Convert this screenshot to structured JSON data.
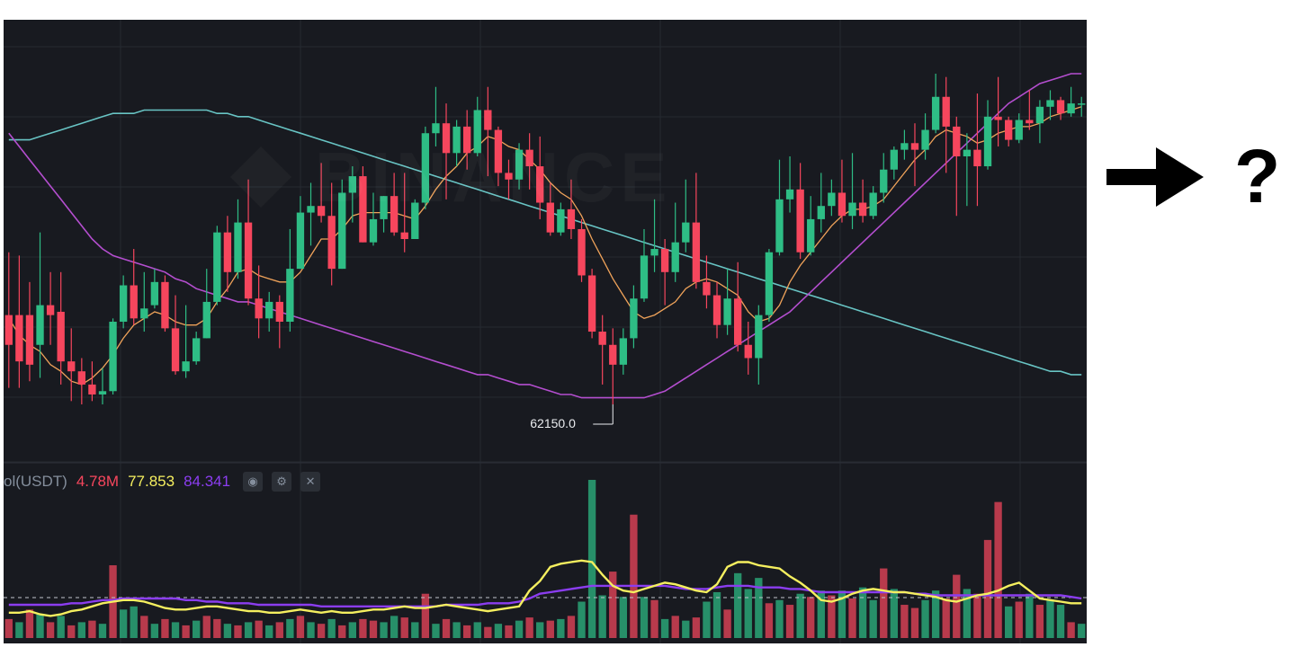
{
  "chart_data": {
    "type": "candlestick",
    "source": "Binance",
    "watermark": "BINANCE",
    "colors": {
      "up": "#2ebd85",
      "down": "#f6465d",
      "ma_short": "#f0a35a",
      "ma_mid": "#b44ecf",
      "ma_long": "#68c4c4",
      "vol_ma_fast": "#f5ef5f",
      "vol_ma_slow": "#8b3df0",
      "background": "#181a20",
      "grid": "#262a31"
    },
    "grid": true,
    "low_marker": {
      "label": "62150.0",
      "candle_index": 58
    },
    "candles": [
      [
        0.27,
        0.18,
        0.05,
        0.46
      ],
      [
        0.27,
        0.13,
        0.05,
        0.45
      ],
      [
        0.27,
        0.12,
        0.07,
        0.37
      ],
      [
        0.18,
        0.3,
        0.08,
        0.52
      ],
      [
        0.3,
        0.27,
        0.18,
        0.4
      ],
      [
        0.28,
        0.13,
        0.06,
        0.4
      ],
      [
        0.13,
        0.1,
        0.01,
        0.23
      ],
      [
        0.1,
        0.06,
        0.0,
        0.14
      ],
      [
        0.06,
        0.03,
        0.01,
        0.13
      ],
      [
        0.03,
        0.04,
        0.0,
        0.11
      ],
      [
        0.04,
        0.25,
        0.03,
        0.26
      ],
      [
        0.25,
        0.36,
        0.23,
        0.39
      ],
      [
        0.36,
        0.26,
        0.24,
        0.47
      ],
      [
        0.26,
        0.29,
        0.22,
        0.4
      ],
      [
        0.3,
        0.37,
        0.29,
        0.41
      ],
      [
        0.37,
        0.23,
        0.22,
        0.39
      ],
      [
        0.23,
        0.1,
        0.09,
        0.33
      ],
      [
        0.1,
        0.13,
        0.08,
        0.3
      ],
      [
        0.13,
        0.2,
        0.12,
        0.22
      ],
      [
        0.2,
        0.31,
        0.2,
        0.41
      ],
      [
        0.31,
        0.52,
        0.3,
        0.54
      ],
      [
        0.52,
        0.4,
        0.34,
        0.57
      ],
      [
        0.4,
        0.55,
        0.38,
        0.62
      ],
      [
        0.55,
        0.32,
        0.3,
        0.68
      ],
      [
        0.32,
        0.26,
        0.2,
        0.42
      ],
      [
        0.26,
        0.31,
        0.22,
        0.34
      ],
      [
        0.31,
        0.25,
        0.17,
        0.33
      ],
      [
        0.25,
        0.41,
        0.22,
        0.53
      ],
      [
        0.41,
        0.58,
        0.41,
        0.63
      ],
      [
        0.58,
        0.6,
        0.48,
        0.67
      ],
      [
        0.6,
        0.57,
        0.55,
        0.73
      ],
      [
        0.57,
        0.41,
        0.36,
        0.67
      ],
      [
        0.41,
        0.64,
        0.41,
        0.68
      ],
      [
        0.64,
        0.69,
        0.55,
        0.72
      ],
      [
        0.69,
        0.49,
        0.49,
        0.72
      ],
      [
        0.49,
        0.56,
        0.48,
        0.64
      ],
      [
        0.56,
        0.63,
        0.52,
        0.63
      ],
      [
        0.63,
        0.52,
        0.51,
        0.7
      ],
      [
        0.52,
        0.5,
        0.46,
        0.7
      ],
      [
        0.5,
        0.61,
        0.5,
        0.62
      ],
      [
        0.61,
        0.82,
        0.59,
        0.84
      ],
      [
        0.82,
        0.85,
        0.78,
        0.96
      ],
      [
        0.85,
        0.76,
        0.62,
        0.91
      ],
      [
        0.76,
        0.84,
        0.72,
        0.86
      ],
      [
        0.84,
        0.76,
        0.71,
        0.89
      ],
      [
        0.76,
        0.89,
        0.75,
        0.93
      ],
      [
        0.89,
        0.83,
        0.69,
        0.96
      ],
      [
        0.83,
        0.7,
        0.66,
        0.84
      ],
      [
        0.7,
        0.68,
        0.62,
        0.74
      ],
      [
        0.68,
        0.77,
        0.65,
        0.79
      ],
      [
        0.77,
        0.72,
        0.65,
        0.82
      ],
      [
        0.72,
        0.61,
        0.56,
        0.81
      ],
      [
        0.61,
        0.52,
        0.51,
        0.67
      ],
      [
        0.52,
        0.59,
        0.51,
        0.61
      ],
      [
        0.59,
        0.53,
        0.5,
        0.68
      ],
      [
        0.53,
        0.39,
        0.37,
        0.56
      ],
      [
        0.39,
        0.22,
        0.2,
        0.41
      ],
      [
        0.22,
        0.18,
        0.06,
        0.27
      ],
      [
        0.18,
        0.12,
        0.0,
        0.23
      ],
      [
        0.12,
        0.2,
        0.09,
        0.23
      ],
      [
        0.2,
        0.32,
        0.17,
        0.36
      ],
      [
        0.32,
        0.45,
        0.31,
        0.53
      ],
      [
        0.45,
        0.47,
        0.4,
        0.62
      ],
      [
        0.47,
        0.4,
        0.3,
        0.5
      ],
      [
        0.4,
        0.49,
        0.37,
        0.61
      ],
      [
        0.49,
        0.55,
        0.46,
        0.68
      ],
      [
        0.55,
        0.37,
        0.35,
        0.7
      ],
      [
        0.37,
        0.33,
        0.29,
        0.45
      ],
      [
        0.33,
        0.24,
        0.2,
        0.37
      ],
      [
        0.24,
        0.32,
        0.21,
        0.41
      ],
      [
        0.32,
        0.18,
        0.16,
        0.43
      ],
      [
        0.18,
        0.14,
        0.09,
        0.25
      ],
      [
        0.14,
        0.27,
        0.06,
        0.3
      ],
      [
        0.27,
        0.46,
        0.25,
        0.47
      ],
      [
        0.46,
        0.62,
        0.45,
        0.74
      ],
      [
        0.62,
        0.65,
        0.58,
        0.75
      ],
      [
        0.65,
        0.46,
        0.44,
        0.73
      ],
      [
        0.46,
        0.56,
        0.45,
        0.63
      ],
      [
        0.56,
        0.6,
        0.52,
        0.7
      ],
      [
        0.6,
        0.64,
        0.57,
        0.68
      ],
      [
        0.64,
        0.57,
        0.55,
        0.74
      ],
      [
        0.57,
        0.61,
        0.53,
        0.76
      ],
      [
        0.61,
        0.57,
        0.55,
        0.68
      ],
      [
        0.57,
        0.64,
        0.56,
        0.66
      ],
      [
        0.64,
        0.71,
        0.61,
        0.76
      ],
      [
        0.71,
        0.77,
        0.68,
        0.78
      ],
      [
        0.77,
        0.79,
        0.74,
        0.83
      ],
      [
        0.79,
        0.77,
        0.66,
        0.85
      ],
      [
        0.77,
        0.83,
        0.74,
        0.88
      ],
      [
        0.83,
        0.93,
        0.82,
        1.0
      ],
      [
        0.93,
        0.84,
        0.7,
        0.99
      ],
      [
        0.84,
        0.75,
        0.57,
        0.87
      ],
      [
        0.75,
        0.77,
        0.6,
        0.82
      ],
      [
        0.77,
        0.72,
        0.6,
        0.94
      ],
      [
        0.72,
        0.87,
        0.71,
        0.92
      ],
      [
        0.87,
        0.86,
        0.78,
        0.99
      ],
      [
        0.86,
        0.8,
        0.78,
        0.87
      ],
      [
        0.8,
        0.86,
        0.79,
        0.88
      ],
      [
        0.86,
        0.85,
        0.83,
        0.95
      ],
      [
        0.85,
        0.9,
        0.79,
        0.92
      ],
      [
        0.9,
        0.92,
        0.86,
        0.95
      ],
      [
        0.92,
        0.88,
        0.86,
        0.93
      ],
      [
        0.88,
        0.91,
        0.87,
        0.96
      ],
      [
        0.91,
        0.91,
        0.87,
        0.93
      ]
    ],
    "ma_short": [
      0.26,
      0.21,
      0.18,
      0.16,
      0.12,
      0.1,
      0.07,
      0.06,
      0.08,
      0.11,
      0.15,
      0.2,
      0.24,
      0.26,
      0.28,
      0.27,
      0.25,
      0.24,
      0.24,
      0.26,
      0.31,
      0.35,
      0.4,
      0.41,
      0.39,
      0.38,
      0.37,
      0.37,
      0.4,
      0.45,
      0.5,
      0.5,
      0.53,
      0.57,
      0.58,
      0.58,
      0.58,
      0.58,
      0.57,
      0.56,
      0.6,
      0.65,
      0.69,
      0.72,
      0.76,
      0.78,
      0.81,
      0.8,
      0.78,
      0.77,
      0.74,
      0.71,
      0.67,
      0.64,
      0.62,
      0.57,
      0.5,
      0.44,
      0.38,
      0.33,
      0.28,
      0.26,
      0.27,
      0.29,
      0.31,
      0.35,
      0.37,
      0.38,
      0.37,
      0.35,
      0.33,
      0.28,
      0.25,
      0.26,
      0.3,
      0.37,
      0.42,
      0.46,
      0.5,
      0.54,
      0.57,
      0.59,
      0.59,
      0.6,
      0.62,
      0.66,
      0.7,
      0.74,
      0.77,
      0.81,
      0.83,
      0.82,
      0.81,
      0.79,
      0.8,
      0.82,
      0.83,
      0.84,
      0.84,
      0.85,
      0.87,
      0.88,
      0.89,
      0.9
    ],
    "ma_mid": [
      0.82,
      0.78,
      0.74,
      0.7,
      0.66,
      0.62,
      0.58,
      0.54,
      0.5,
      0.47,
      0.45,
      0.44,
      0.43,
      0.42,
      0.41,
      0.4,
      0.38,
      0.37,
      0.35,
      0.34,
      0.33,
      0.32,
      0.31,
      0.31,
      0.3,
      0.29,
      0.28,
      0.27,
      0.26,
      0.25,
      0.24,
      0.23,
      0.22,
      0.21,
      0.2,
      0.19,
      0.18,
      0.17,
      0.16,
      0.15,
      0.14,
      0.13,
      0.12,
      0.11,
      0.1,
      0.09,
      0.09,
      0.08,
      0.07,
      0.06,
      0.06,
      0.05,
      0.04,
      0.03,
      0.03,
      0.02,
      0.02,
      0.02,
      0.02,
      0.02,
      0.02,
      0.02,
      0.03,
      0.04,
      0.06,
      0.08,
      0.1,
      0.12,
      0.14,
      0.16,
      0.18,
      0.2,
      0.22,
      0.24,
      0.26,
      0.28,
      0.31,
      0.34,
      0.37,
      0.4,
      0.43,
      0.46,
      0.49,
      0.52,
      0.55,
      0.58,
      0.61,
      0.64,
      0.67,
      0.7,
      0.73,
      0.76,
      0.79,
      0.82,
      0.85,
      0.88,
      0.91,
      0.93,
      0.95,
      0.97,
      0.98,
      0.99,
      1.0,
      1.0
    ],
    "ma_long": [
      0.8,
      0.8,
      0.8,
      0.81,
      0.82,
      0.83,
      0.84,
      0.85,
      0.86,
      0.87,
      0.88,
      0.88,
      0.88,
      0.89,
      0.89,
      0.89,
      0.89,
      0.89,
      0.89,
      0.89,
      0.88,
      0.88,
      0.87,
      0.87,
      0.86,
      0.85,
      0.84,
      0.83,
      0.82,
      0.81,
      0.8,
      0.79,
      0.78,
      0.77,
      0.76,
      0.75,
      0.74,
      0.73,
      0.72,
      0.71,
      0.7,
      0.69,
      0.68,
      0.67,
      0.66,
      0.65,
      0.64,
      0.63,
      0.62,
      0.61,
      0.6,
      0.59,
      0.58,
      0.57,
      0.56,
      0.55,
      0.54,
      0.53,
      0.52,
      0.51,
      0.5,
      0.49,
      0.48,
      0.47,
      0.46,
      0.45,
      0.44,
      0.43,
      0.42,
      0.41,
      0.4,
      0.39,
      0.38,
      0.37,
      0.36,
      0.35,
      0.34,
      0.33,
      0.32,
      0.31,
      0.3,
      0.29,
      0.28,
      0.27,
      0.26,
      0.25,
      0.24,
      0.23,
      0.22,
      0.21,
      0.2,
      0.19,
      0.18,
      0.17,
      0.16,
      0.15,
      0.14,
      0.13,
      0.12,
      0.11,
      0.1,
      0.1,
      0.09,
      0.09
    ],
    "volume": [
      [
        0.12,
        0
      ],
      [
        0.1,
        1
      ],
      [
        0.18,
        0
      ],
      [
        0.15,
        1
      ],
      [
        0.1,
        0
      ],
      [
        0.14,
        1
      ],
      [
        0.08,
        0
      ],
      [
        0.1,
        1
      ],
      [
        0.11,
        0
      ],
      [
        0.09,
        1
      ],
      [
        0.46,
        0
      ],
      [
        0.18,
        1
      ],
      [
        0.2,
        1
      ],
      [
        0.14,
        0
      ],
      [
        0.09,
        1
      ],
      [
        0.12,
        0
      ],
      [
        0.1,
        1
      ],
      [
        0.08,
        0
      ],
      [
        0.11,
        1
      ],
      [
        0.14,
        0
      ],
      [
        0.12,
        0
      ],
      [
        0.09,
        1
      ],
      [
        0.08,
        0
      ],
      [
        0.1,
        1
      ],
      [
        0.11,
        0
      ],
      [
        0.08,
        1
      ],
      [
        0.1,
        0
      ],
      [
        0.12,
        1
      ],
      [
        0.14,
        0
      ],
      [
        0.1,
        1
      ],
      [
        0.09,
        0
      ],
      [
        0.12,
        1
      ],
      [
        0.08,
        0
      ],
      [
        0.1,
        1
      ],
      [
        0.12,
        0
      ],
      [
        0.11,
        0
      ],
      [
        0.1,
        1
      ],
      [
        0.14,
        1
      ],
      [
        0.13,
        0
      ],
      [
        0.1,
        1
      ],
      [
        0.28,
        0
      ],
      [
        0.09,
        1
      ],
      [
        0.12,
        0
      ],
      [
        0.1,
        1
      ],
      [
        0.08,
        0
      ],
      [
        0.1,
        1
      ],
      [
        0.07,
        0
      ],
      [
        0.09,
        1
      ],
      [
        0.08,
        0
      ],
      [
        0.11,
        1
      ],
      [
        0.13,
        0
      ],
      [
        0.1,
        1
      ],
      [
        0.11,
        0
      ],
      [
        0.12,
        1
      ],
      [
        0.14,
        0
      ],
      [
        0.23,
        1
      ],
      [
        1.0,
        1
      ],
      [
        0.27,
        1
      ],
      [
        0.42,
        0
      ],
      [
        0.26,
        1
      ],
      [
        0.78,
        0
      ],
      [
        0.26,
        1
      ],
      [
        0.24,
        0
      ],
      [
        0.12,
        1
      ],
      [
        0.14,
        0
      ],
      [
        0.11,
        1
      ],
      [
        0.13,
        0
      ],
      [
        0.23,
        1
      ],
      [
        0.29,
        1
      ],
      [
        0.18,
        0
      ],
      [
        0.41,
        1
      ],
      [
        0.31,
        1
      ],
      [
        0.38,
        1
      ],
      [
        0.22,
        0
      ],
      [
        0.24,
        1
      ],
      [
        0.21,
        0
      ],
      [
        0.28,
        1
      ],
      [
        0.26,
        0
      ],
      [
        0.3,
        1
      ],
      [
        0.27,
        0
      ],
      [
        0.3,
        1
      ],
      [
        0.25,
        0
      ],
      [
        0.32,
        1
      ],
      [
        0.24,
        1
      ],
      [
        0.44,
        0
      ],
      [
        0.31,
        1
      ],
      [
        0.21,
        0
      ],
      [
        0.19,
        0
      ],
      [
        0.24,
        1
      ],
      [
        0.3,
        1
      ],
      [
        0.25,
        0
      ],
      [
        0.4,
        0
      ],
      [
        0.31,
        1
      ],
      [
        0.28,
        0
      ],
      [
        0.62,
        0
      ],
      [
        0.86,
        0
      ],
      [
        0.2,
        1
      ],
      [
        0.23,
        0
      ],
      [
        0.28,
        1
      ],
      [
        0.21,
        0
      ],
      [
        0.24,
        1
      ],
      [
        0.21,
        1
      ],
      [
        0.1,
        0
      ],
      [
        0.09,
        1
      ]
    ],
    "vol_ma_fast": [
      0.16,
      0.16,
      0.17,
      0.15,
      0.14,
      0.15,
      0.17,
      0.18,
      0.2,
      0.22,
      0.23,
      0.24,
      0.24,
      0.23,
      0.21,
      0.19,
      0.18,
      0.18,
      0.19,
      0.2,
      0.2,
      0.19,
      0.18,
      0.17,
      0.17,
      0.16,
      0.16,
      0.17,
      0.18,
      0.17,
      0.16,
      0.17,
      0.16,
      0.16,
      0.17,
      0.18,
      0.18,
      0.19,
      0.2,
      0.19,
      0.19,
      0.2,
      0.21,
      0.2,
      0.19,
      0.18,
      0.17,
      0.18,
      0.19,
      0.2,
      0.3,
      0.36,
      0.45,
      0.47,
      0.48,
      0.49,
      0.48,
      0.4,
      0.33,
      0.3,
      0.29,
      0.31,
      0.33,
      0.35,
      0.34,
      0.32,
      0.3,
      0.29,
      0.34,
      0.45,
      0.48,
      0.48,
      0.46,
      0.45,
      0.44,
      0.39,
      0.35,
      0.3,
      0.24,
      0.23,
      0.25,
      0.28,
      0.3,
      0.31,
      0.3,
      0.29,
      0.29,
      0.28,
      0.27,
      0.26,
      0.24,
      0.23,
      0.25,
      0.27,
      0.28,
      0.3,
      0.33,
      0.35,
      0.3,
      0.25,
      0.24,
      0.23,
      0.22,
      0.22
    ],
    "vol_ma_slow": [
      0.21,
      0.21,
      0.21,
      0.21,
      0.21,
      0.21,
      0.22,
      0.22,
      0.23,
      0.24,
      0.24,
      0.25,
      0.25,
      0.25,
      0.25,
      0.25,
      0.25,
      0.24,
      0.24,
      0.23,
      0.23,
      0.22,
      0.22,
      0.22,
      0.21,
      0.21,
      0.21,
      0.21,
      0.21,
      0.21,
      0.2,
      0.2,
      0.2,
      0.2,
      0.2,
      0.2,
      0.2,
      0.2,
      0.2,
      0.2,
      0.2,
      0.2,
      0.21,
      0.21,
      0.21,
      0.21,
      0.22,
      0.22,
      0.22,
      0.23,
      0.25,
      0.28,
      0.29,
      0.3,
      0.31,
      0.32,
      0.33,
      0.33,
      0.33,
      0.33,
      0.33,
      0.33,
      0.33,
      0.33,
      0.32,
      0.31,
      0.31,
      0.31,
      0.32,
      0.33,
      0.33,
      0.33,
      0.32,
      0.32,
      0.32,
      0.31,
      0.31,
      0.3,
      0.29,
      0.29,
      0.29,
      0.29,
      0.29,
      0.29,
      0.29,
      0.29,
      0.29,
      0.28,
      0.28,
      0.27,
      0.27,
      0.27,
      0.27,
      0.27,
      0.27,
      0.27,
      0.27,
      0.27,
      0.27,
      0.27,
      0.27,
      0.27,
      0.26,
      0.25
    ]
  },
  "volume_legend": {
    "label": "ol(USDT)",
    "volume": "4.78M",
    "ma_fast": "77.853",
    "ma_slow": "84.341",
    "eye_icon": "eye-icon",
    "settings_icon": "gear-icon",
    "close_icon": "close-icon"
  },
  "annotation": {
    "question": "?",
    "arrow_icon": "arrow-right-icon"
  }
}
